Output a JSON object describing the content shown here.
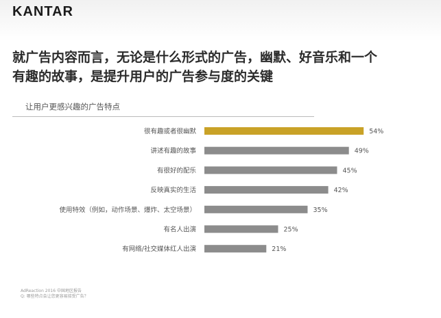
{
  "brand": {
    "logo_text": "KANTAR"
  },
  "headline": {
    "line1": "就广告内容而言，无论是什么形式的广告，幽默、好音乐和一个",
    "line2": "有趣的故事，是提升用户的广告参与度的关键"
  },
  "section": {
    "label": "让用户更感兴趣的广告特点"
  },
  "chart_data": {
    "type": "bar",
    "orientation": "horizontal",
    "categories": [
      "很有趣或者很幽默",
      "讲述有趣的故事",
      "有很好的配乐",
      "反映真实的生活",
      "使用特效（例如，动作场景、爆炸、太空场景）",
      "有名人出演",
      "有网络/社交媒体红人出演"
    ],
    "values": [
      54,
      49,
      45,
      42,
      35,
      25,
      21
    ],
    "data_labels": [
      "54%",
      "49%",
      "45%",
      "42%",
      "35%",
      "25%",
      "21%"
    ],
    "unit": "%",
    "highlight_index": 0,
    "colors": {
      "highlight": "#c9a227",
      "default": "#8c8c8c",
      "label": "#555555"
    },
    "grid": false,
    "legend": "none"
  },
  "footer": {
    "source": "AdReaction 2016 中国地区报告",
    "question": "Q: 哪些特点会让您更容易接受广告？"
  }
}
